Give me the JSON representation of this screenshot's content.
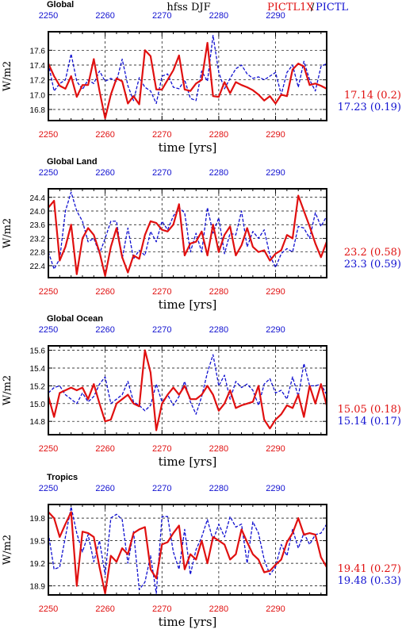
{
  "header": {
    "title": "hfss DJF",
    "legend_red": "PICTL1X",
    "legend_sep": "/",
    "legend_blue": "PICTL"
  },
  "colors": {
    "red": "#e01010",
    "blue": "#1010d0",
    "axis": "#000000",
    "grid": "#000000"
  },
  "chart_data": [
    {
      "type": "line",
      "title": "Global",
      "xlabel": "time [yrs]",
      "ylabel": "W/m2",
      "xlim": [
        2250,
        2299
      ],
      "ylim": [
        16.65,
        17.85
      ],
      "xticks": [
        2250,
        2260,
        2270,
        2280,
        2290
      ],
      "yticks": [
        16.8,
        17.0,
        17.2,
        17.4,
        17.6
      ],
      "ytick_labels": [
        "16.8",
        "17.0",
        "17.2",
        "17.4",
        "17.6"
      ],
      "grid": "dashed",
      "stats": {
        "red": "17.14 (0.2)",
        "blue": "17.23 (0.19)"
      },
      "x": [
        2250,
        2251,
        2252,
        2253,
        2254,
        2255,
        2256,
        2257,
        2258,
        2259,
        2260,
        2261,
        2262,
        2263,
        2264,
        2265,
        2266,
        2267,
        2268,
        2269,
        2270,
        2271,
        2272,
        2273,
        2274,
        2275,
        2276,
        2277,
        2278,
        2279,
        2280,
        2281,
        2282,
        2283,
        2284,
        2285,
        2286,
        2287,
        2288,
        2289,
        2290,
        2291,
        2292,
        2293,
        2294,
        2295,
        2296,
        2297,
        2298,
        2299
      ],
      "series": [
        {
          "name": "PICTL1X",
          "color": "red",
          "style": "solid",
          "values": [
            17.42,
            17.25,
            17.12,
            17.08,
            17.25,
            16.97,
            17.13,
            17.13,
            17.48,
            17.05,
            16.68,
            17.0,
            17.22,
            17.18,
            16.88,
            16.98,
            16.87,
            17.6,
            17.52,
            17.07,
            17.07,
            17.2,
            17.33,
            17.53,
            17.07,
            17.05,
            17.15,
            17.2,
            17.7,
            16.98,
            16.97,
            17.17,
            17.02,
            17.17,
            17.13,
            17.1,
            17.06,
            17.0,
            16.92,
            16.98,
            16.88,
            17.0,
            16.98,
            17.34,
            17.42,
            17.38,
            17.13,
            17.15,
            17.12,
            17.08
          ]
        },
        {
          "name": "PICTL",
          "color": "blue",
          "style": "dashed",
          "values": [
            17.42,
            17.05,
            17.15,
            17.2,
            17.55,
            17.18,
            17.07,
            17.2,
            17.15,
            17.32,
            17.18,
            17.22,
            17.18,
            17.48,
            17.12,
            16.92,
            17.23,
            17.1,
            17.05,
            16.88,
            17.25,
            17.28,
            17.1,
            17.08,
            17.2,
            16.95,
            16.92,
            17.32,
            17.18,
            17.8,
            17.3,
            17.08,
            17.22,
            17.35,
            17.4,
            17.28,
            17.22,
            17.24,
            17.2,
            17.25,
            17.3,
            17.0,
            17.3,
            17.4,
            17.1,
            17.45,
            17.2,
            17.05,
            17.38,
            17.42
          ]
        }
      ]
    },
    {
      "type": "line",
      "title": "Global Land",
      "xlabel": "time [yrs]",
      "ylabel": "W/m2",
      "xlim": [
        2250,
        2299
      ],
      "ylim": [
        22.05,
        24.65
      ],
      "xticks": [
        2250,
        2260,
        2270,
        2280,
        2290
      ],
      "yticks": [
        22.4,
        22.8,
        23.2,
        23.6,
        24.0,
        24.4
      ],
      "ytick_labels": [
        "22.4",
        "22.8",
        "23.2",
        "23.6",
        "24.0",
        "24.4"
      ],
      "grid": "dashed",
      "stats": {
        "red": "23.2 (0.58)",
        "blue": "23.3 (0.59)"
      },
      "x": [
        2250,
        2251,
        2252,
        2253,
        2254,
        2255,
        2256,
        2257,
        2258,
        2259,
        2260,
        2261,
        2262,
        2263,
        2264,
        2265,
        2266,
        2267,
        2268,
        2269,
        2270,
        2271,
        2272,
        2273,
        2274,
        2275,
        2276,
        2277,
        2278,
        2279,
        2280,
        2281,
        2282,
        2283,
        2284,
        2285,
        2286,
        2287,
        2288,
        2289,
        2290,
        2291,
        2292,
        2293,
        2294,
        2295,
        2296,
        2297,
        2298,
        2299
      ],
      "series": [
        {
          "name": "PICTL1X",
          "color": "red",
          "style": "solid",
          "values": [
            24.1,
            24.3,
            22.55,
            22.95,
            23.6,
            22.15,
            23.2,
            23.5,
            23.3,
            22.8,
            22.1,
            22.95,
            23.5,
            22.65,
            22.2,
            22.7,
            22.6,
            23.3,
            23.7,
            23.65,
            23.45,
            23.4,
            23.6,
            24.2,
            22.7,
            23.05,
            23.1,
            23.4,
            22.7,
            23.6,
            22.8,
            23.3,
            23.55,
            22.7,
            23.0,
            23.5,
            22.95,
            22.8,
            22.85,
            22.55,
            22.75,
            22.85,
            23.3,
            23.2,
            24.45,
            24.0,
            23.55,
            23.05,
            22.65,
            23.1
          ]
        },
        {
          "name": "PICTL",
          "color": "blue",
          "style": "dashed",
          "values": [
            22.8,
            22.3,
            22.6,
            24.0,
            24.55,
            24.0,
            23.7,
            23.1,
            23.2,
            22.75,
            23.2,
            23.7,
            23.7,
            22.6,
            23.5,
            22.6,
            22.85,
            22.7,
            23.4,
            23.1,
            23.7,
            23.45,
            23.85,
            24.1,
            23.95,
            22.8,
            23.35,
            22.8,
            24.1,
            23.35,
            23.8,
            22.75,
            23.35,
            23.3,
            24.0,
            22.95,
            23.4,
            23.2,
            23.45,
            22.7,
            22.35,
            22.75,
            22.9,
            22.8,
            23.55,
            23.5,
            23.2,
            23.95,
            23.55,
            23.85
          ]
        }
      ]
    },
    {
      "type": "line",
      "title": "Global Ocean",
      "xlabel": "time [yrs]",
      "ylabel": "W/m2",
      "xlim": [
        2250,
        2299
      ],
      "ylim": [
        14.65,
        15.65
      ],
      "xticks": [
        2250,
        2260,
        2270,
        2280,
        2290
      ],
      "yticks": [
        14.8,
        15.0,
        15.2,
        15.4,
        15.6
      ],
      "ytick_labels": [
        "14.8",
        "15.0",
        "15.2",
        "15.4",
        "15.6"
      ],
      "grid": "dashed",
      "stats": {
        "red": "15.05 (0.18)",
        "blue": "15.14 (0.17)"
      },
      "x": [
        2250,
        2251,
        2252,
        2253,
        2254,
        2255,
        2256,
        2257,
        2258,
        2259,
        2260,
        2261,
        2262,
        2263,
        2264,
        2265,
        2266,
        2267,
        2268,
        2269,
        2270,
        2271,
        2272,
        2273,
        2274,
        2275,
        2276,
        2277,
        2278,
        2279,
        2280,
        2281,
        2282,
        2283,
        2284,
        2285,
        2286,
        2287,
        2288,
        2289,
        2290,
        2291,
        2292,
        2293,
        2294,
        2295,
        2296,
        2297,
        2298,
        2299
      ],
      "series": [
        {
          "name": "PICTL1X",
          "color": "red",
          "style": "solid",
          "values": [
            15.08,
            14.85,
            15.12,
            15.15,
            15.18,
            15.15,
            15.18,
            15.05,
            15.22,
            15.0,
            14.8,
            14.82,
            15.0,
            15.05,
            15.1,
            15.0,
            14.97,
            15.6,
            15.35,
            14.7,
            15.0,
            15.1,
            15.18,
            15.1,
            15.2,
            15.05,
            15.05,
            15.1,
            15.2,
            15.1,
            14.92,
            15.0,
            15.15,
            14.95,
            14.98,
            15.0,
            15.02,
            15.2,
            14.82,
            14.72,
            14.82,
            14.88,
            14.98,
            14.95,
            15.1,
            14.85,
            15.2,
            15.0,
            15.22,
            14.98
          ]
        },
        {
          "name": "PICTL",
          "color": "blue",
          "style": "dashed",
          "values": [
            15.12,
            15.18,
            15.2,
            15.1,
            15.05,
            15.0,
            15.12,
            15.02,
            15.08,
            15.22,
            15.3,
            15.0,
            15.05,
            15.1,
            15.25,
            15.02,
            14.98,
            14.92,
            14.98,
            15.22,
            15.02,
            15.1,
            14.98,
            15.08,
            15.25,
            15.02,
            14.88,
            15.08,
            15.35,
            15.55,
            15.2,
            15.32,
            15.05,
            15.25,
            15.18,
            15.22,
            15.15,
            14.98,
            15.22,
            15.28,
            15.12,
            15.15,
            15.05,
            15.3,
            15.08,
            15.45,
            15.2,
            15.2,
            15.22,
            15.1
          ]
        }
      ]
    },
    {
      "type": "line",
      "title": "Tropics",
      "xlabel": "time [yrs]",
      "ylabel": "W/m2",
      "xlim": [
        2250,
        2299
      ],
      "ylim": [
        18.78,
        19.98
      ],
      "xticks": [
        2250,
        2260,
        2270,
        2280,
        2290
      ],
      "yticks": [
        18.9,
        19.2,
        19.5,
        19.8
      ],
      "ytick_labels": [
        "18.9",
        "19.2",
        "19.5",
        "19.8"
      ],
      "grid": "dashed",
      "stats": {
        "red": "19.41 (0.27)",
        "blue": "19.48 (0.33)"
      },
      "x": [
        2250,
        2251,
        2252,
        2253,
        2254,
        2255,
        2256,
        2257,
        2258,
        2259,
        2260,
        2261,
        2262,
        2263,
        2264,
        2265,
        2266,
        2267,
        2268,
        2269,
        2270,
        2271,
        2272,
        2273,
        2274,
        2275,
        2276,
        2277,
        2278,
        2279,
        2280,
        2281,
        2282,
        2283,
        2284,
        2285,
        2286,
        2287,
        2288,
        2289,
        2290,
        2291,
        2292,
        2293,
        2294,
        2295,
        2296,
        2297,
        2298,
        2299
      ],
      "series": [
        {
          "name": "PICTL1X",
          "color": "red",
          "style": "solid",
          "values": [
            19.88,
            19.8,
            19.55,
            19.72,
            19.88,
            18.9,
            19.62,
            19.6,
            19.55,
            19.15,
            18.8,
            19.3,
            19.22,
            19.4,
            19.32,
            19.6,
            19.65,
            19.68,
            19.12,
            19.0,
            19.45,
            19.48,
            19.6,
            19.7,
            19.12,
            19.32,
            19.25,
            19.5,
            19.2,
            19.55,
            19.5,
            19.45,
            19.25,
            19.32,
            19.65,
            19.48,
            19.32,
            19.25,
            19.08,
            19.1,
            19.18,
            19.25,
            19.48,
            19.6,
            19.8,
            19.58,
            19.6,
            19.58,
            19.28,
            19.15
          ]
        },
        {
          "name": "PICTL",
          "color": "blue",
          "style": "dashed",
          "values": [
            19.6,
            19.12,
            19.15,
            19.55,
            19.95,
            19.6,
            19.35,
            19.58,
            19.22,
            19.5,
            19.05,
            19.8,
            19.85,
            19.78,
            19.2,
            19.62,
            18.85,
            18.95,
            19.3,
            18.8,
            19.82,
            19.82,
            19.35,
            19.12,
            19.65,
            19.05,
            19.38,
            19.55,
            19.78,
            19.5,
            19.72,
            19.55,
            19.82,
            19.68,
            19.72,
            19.2,
            19.75,
            19.6,
            19.25,
            19.05,
            19.15,
            19.45,
            19.3,
            19.65,
            19.4,
            19.6,
            19.45,
            19.58,
            19.6,
            19.72
          ]
        }
      ]
    }
  ]
}
